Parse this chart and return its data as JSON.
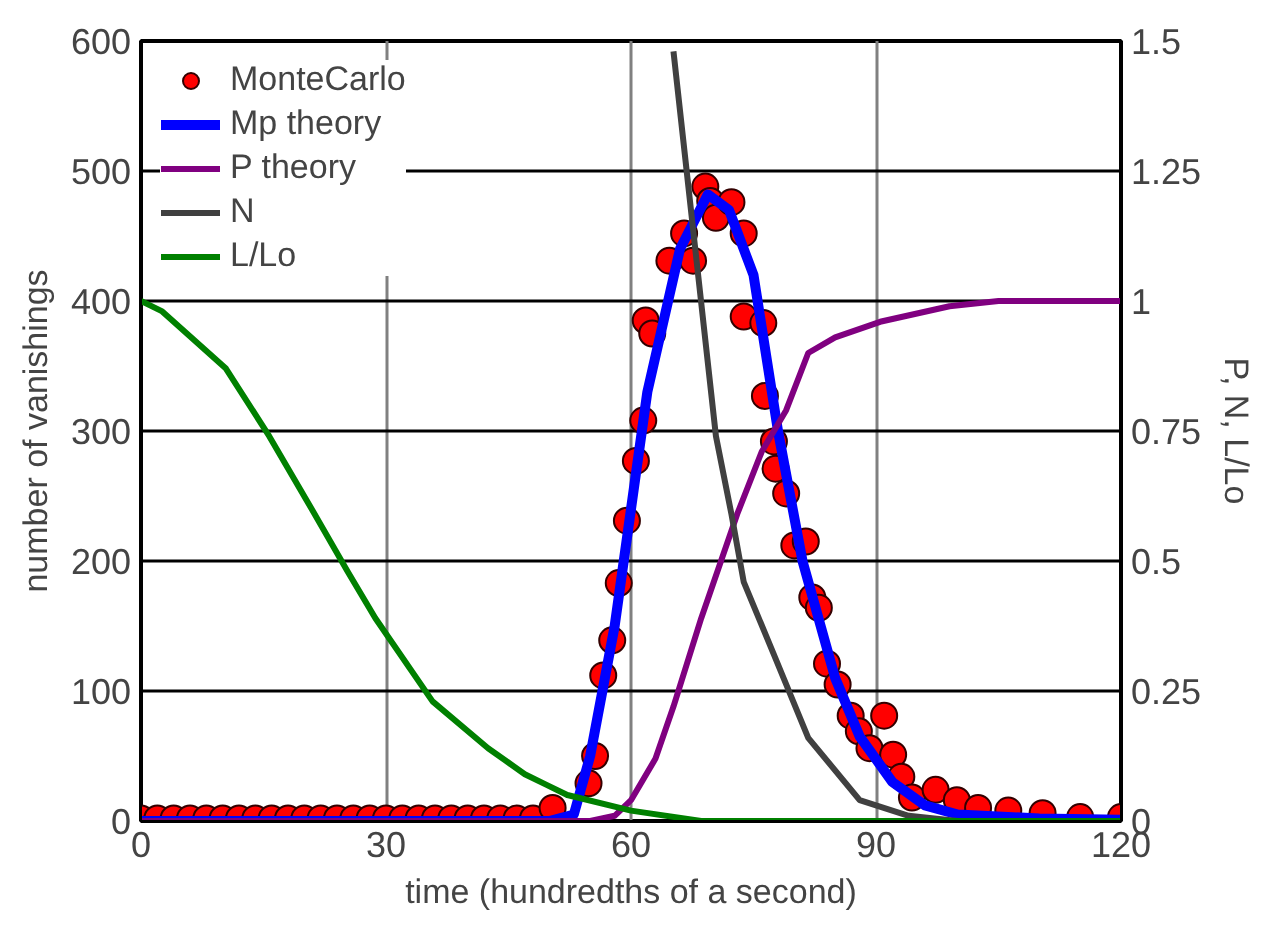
{
  "chart_data": {
    "type": "line",
    "xlabel": "time (hundredths of a second)",
    "ylabel": "number of vanishings",
    "y2label": "P, N, L/Lo",
    "xlim": [
      0,
      120
    ],
    "xticks": [
      0,
      30,
      60,
      90,
      120
    ],
    "ylim": [
      0,
      600
    ],
    "yticks": [
      0,
      100,
      200,
      300,
      400,
      500,
      600
    ],
    "y2lim": [
      0,
      1.5
    ],
    "y2ticks": [
      0,
      0.25,
      0.5,
      {
        "value": 0.75,
        "label": "0.75"
      },
      1,
      1.25,
      1.5
    ],
    "grid": true,
    "legend": "top left",
    "series": [
      {
        "name": "MonteCarlo",
        "type": "scatter",
        "marker": "circle",
        "color": "#ff0000",
        "x": [
          0,
          2,
          4,
          6,
          8,
          10,
          12,
          14,
          16,
          18,
          20,
          22,
          24,
          26,
          28,
          30,
          32,
          34,
          36,
          38,
          40,
          42,
          44,
          46,
          48,
          50.4,
          54.8,
          55.6,
          56.6,
          57.7,
          58.5,
          59.5,
          60.6,
          61.5,
          61.8,
          62.6,
          64.7,
          66.5,
          67.6,
          69.1,
          69.7,
          70.4,
          72.3,
          73.8,
          73.8,
          76.2,
          76.4,
          77.5,
          77.7,
          79,
          80,
          81.4,
          82.2,
          83,
          84,
          85.3,
          86.9,
          87.9,
          89.2,
          91,
          92.1,
          93.1,
          94.4,
          97.3,
          99.9,
          102.5,
          106.2,
          110.4,
          115,
          120
        ],
        "values": [
          2,
          2,
          2,
          2,
          2,
          2,
          2,
          2,
          2,
          2,
          2,
          2,
          2,
          2,
          2,
          2,
          2,
          2,
          2,
          2,
          2,
          2,
          2,
          2,
          2,
          10,
          29,
          50,
          112,
          139,
          183,
          231,
          277,
          308,
          385,
          375,
          431,
          452,
          431,
          488,
          477,
          464,
          476,
          452,
          388,
          383,
          327,
          292,
          271,
          252,
          212,
          215,
          172,
          164,
          121,
          105,
          81,
          69,
          56,
          81,
          51,
          34,
          18,
          24,
          16,
          10,
          8,
          6,
          3,
          3
        ]
      },
      {
        "name": "Mp theory",
        "color": "#0000ff",
        "x": [
          0,
          50,
          53,
          55,
          58,
          62,
          66,
          69.4,
          72,
          75,
          78,
          81,
          85,
          88,
          92,
          96,
          100,
          110,
          120
        ],
        "values": [
          0,
          0,
          5,
          50,
          150,
          330,
          440,
          482,
          470,
          420,
          300,
          200,
          110,
          65,
          30,
          12,
          5,
          2,
          1
        ]
      },
      {
        "name": "P theory",
        "axis": "y2",
        "color": "#800080",
        "x": [
          0,
          55,
          58,
          60,
          63,
          65.2,
          68.6,
          73,
          76,
          79,
          81.7,
          85,
          90.5,
          99,
          105,
          120
        ],
        "values": [
          0,
          0,
          0.01,
          0.04,
          0.12,
          0.22,
          0.39,
          0.59,
          0.71,
          0.79,
          0.9,
          0.93,
          0.96,
          0.99,
          1.0,
          1.0
        ]
      },
      {
        "name": "N",
        "axis": "y2",
        "color": "#404040",
        "x": [
          65.2,
          67.8,
          70.4,
          72.3,
          73.8,
          77.5,
          81.7,
          88,
          94,
          100,
          120
        ],
        "values": [
          1.48,
          1.11,
          0.74,
          0.59,
          0.46,
          0.32,
          0.16,
          0.04,
          0.01,
          0,
          0
        ]
      },
      {
        "name": "L/Lo",
        "axis": "y2",
        "color": "#008000",
        "x": [
          0,
          2.6,
          10.4,
          15.7,
          20.9,
          25.3,
          28.7,
          35.7,
          42.5,
          47,
          49.6,
          52.2,
          60,
          68.6,
          120
        ],
        "values": [
          1.0,
          0.98,
          0.87,
          0.74,
          0.6,
          0.48,
          0.39,
          0.23,
          0.14,
          0.09,
          0.07,
          0.05,
          0.02,
          0,
          0
        ]
      }
    ]
  }
}
